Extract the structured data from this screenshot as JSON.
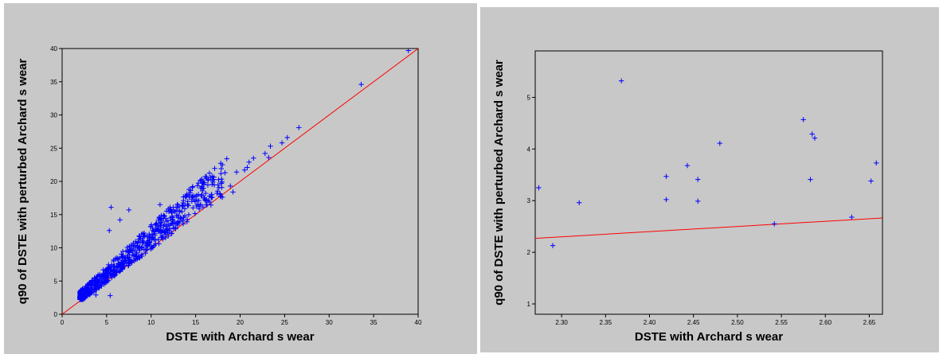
{
  "chart_data": [
    {
      "type": "scatter",
      "xlabel": "DSTE with Archard s wear",
      "ylabel": "q90 of DSTE with perturbed Archard s wear",
      "xlim": [
        0,
        40
      ],
      "ylim": [
        0,
        40
      ],
      "xticks": [
        0,
        5,
        10,
        15,
        20,
        25,
        30,
        35,
        40
      ],
      "yticks": [
        0,
        5,
        10,
        15,
        20,
        25,
        30,
        35,
        40
      ],
      "grid": false,
      "marker": "plus",
      "marker_color": "#0000ff",
      "reference_line": {
        "type": "identity",
        "from": [
          0,
          0
        ],
        "to": [
          40,
          40
        ],
        "color": "#ff0000"
      },
      "series": [
        {
          "values": [
            [
              5.5,
              16.1
            ],
            [
              5.3,
              12.6
            ],
            [
              6.5,
              14.2
            ],
            [
              7.5,
              15.7
            ],
            [
              33.6,
              34.6
            ],
            [
              38.9,
              39.7
            ],
            [
              26.6,
              28.1
            ],
            [
              24.7,
              25.8
            ],
            [
              25.3,
              26.6
            ],
            [
              23.4,
              25.3
            ],
            [
              22.8,
              24.2
            ],
            [
              23.2,
              23.6
            ],
            [
              21.5,
              23.5
            ],
            [
              21.0,
              22.9
            ],
            [
              20.8,
              22.1
            ],
            [
              19.6,
              21.4
            ],
            [
              18.5,
              23.4
            ],
            [
              18.9,
              19.3
            ],
            [
              18.3,
              21.3
            ],
            [
              17.9,
              19.7
            ],
            [
              17.4,
              18.2
            ],
            [
              18.0,
              17.6
            ],
            [
              19.2,
              18.4
            ],
            [
              20.5,
              21.7
            ],
            [
              5.4,
              2.8
            ],
            [
              2.4,
              2.4
            ],
            [
              3.8,
              2.9
            ],
            [
              16.0,
              17.5
            ],
            [
              16.8,
              18.0
            ],
            [
              15.1,
              16.3
            ],
            [
              14.1,
              16.6
            ],
            [
              13.5,
              16.4
            ],
            [
              12.7,
              15.4
            ],
            [
              11.0,
              16.5
            ],
            [
              12.4,
              14.2
            ],
            [
              11.5,
              14.8
            ]
          ]
        }
      ]
    },
    {
      "type": "scatter",
      "xlabel": "DSTE with Archard s wear",
      "ylabel": "q90 of DSTE with perturbed Archard s wear",
      "xlim": [
        2.27,
        2.665
      ],
      "ylim": [
        0.8,
        5.9
      ],
      "xticks": [
        2.3,
        2.35,
        2.4,
        2.45,
        2.5,
        2.55,
        2.6,
        2.65
      ],
      "xtick_labels": [
        "2.30",
        "2.35",
        "2.40",
        "2.45",
        "2.50",
        "2.55",
        "2.60",
        "2.65"
      ],
      "yticks": [
        1,
        2,
        3,
        4,
        5
      ],
      "grid": false,
      "marker": "plus",
      "marker_color": "#0000ff",
      "reference_line": {
        "type": "identity",
        "from": [
          2.27,
          2.27
        ],
        "to": [
          2.665,
          2.665
        ],
        "color": "#ff0000"
      },
      "series": [
        {
          "values": [
            [
              2.274,
              3.25
            ],
            [
              2.29,
              2.13
            ],
            [
              2.32,
              2.96
            ],
            [
              2.368,
              5.32
            ],
            [
              2.419,
              3.47
            ],
            [
              2.419,
              3.02
            ],
            [
              2.443,
              3.68
            ],
            [
              2.455,
              3.41
            ],
            [
              2.455,
              2.99
            ],
            [
              2.48,
              4.11
            ],
            [
              2.542,
              2.55
            ],
            [
              2.575,
              4.57
            ],
            [
              2.583,
              3.41
            ],
            [
              2.585,
              4.29
            ],
            [
              2.588,
              4.21
            ],
            [
              2.63,
              2.68
            ],
            [
              2.652,
              3.38
            ],
            [
              2.658,
              3.73
            ]
          ]
        }
      ]
    }
  ]
}
